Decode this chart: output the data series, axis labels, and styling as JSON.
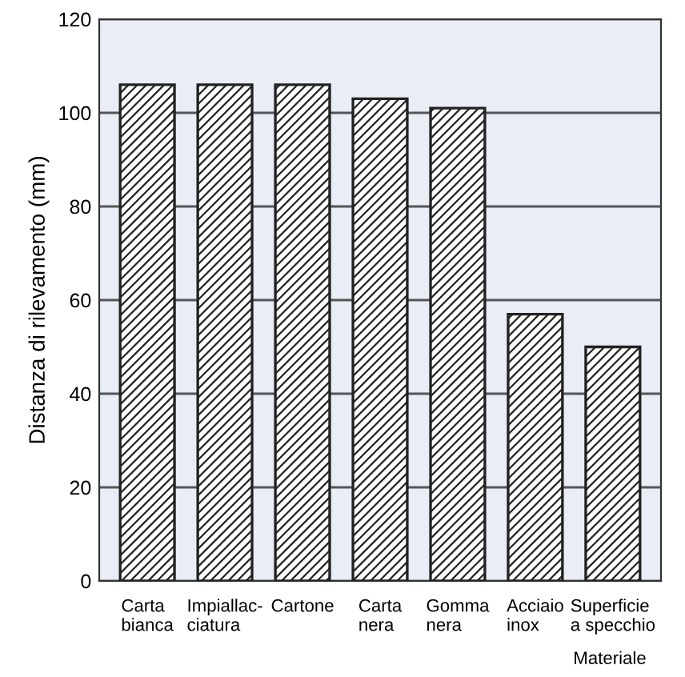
{
  "chart_data": {
    "type": "bar",
    "xlabel": "Materiale",
    "ylabel": "Distanza di rilevamento (mm)",
    "categories": [
      "Carta\nbianca",
      "Impiallac-\nciatura",
      "Cartone",
      "Carta\nnera",
      "Gomma\nnera",
      "Acciaio\ninox",
      "Superficie\na specchio"
    ],
    "values": [
      106,
      106,
      106,
      103,
      101,
      57,
      50
    ],
    "color": "#222222",
    "ylim": [
      0,
      120
    ],
    "yticks": [
      0,
      20,
      40,
      60,
      80,
      100,
      120
    ],
    "grid": "y"
  }
}
